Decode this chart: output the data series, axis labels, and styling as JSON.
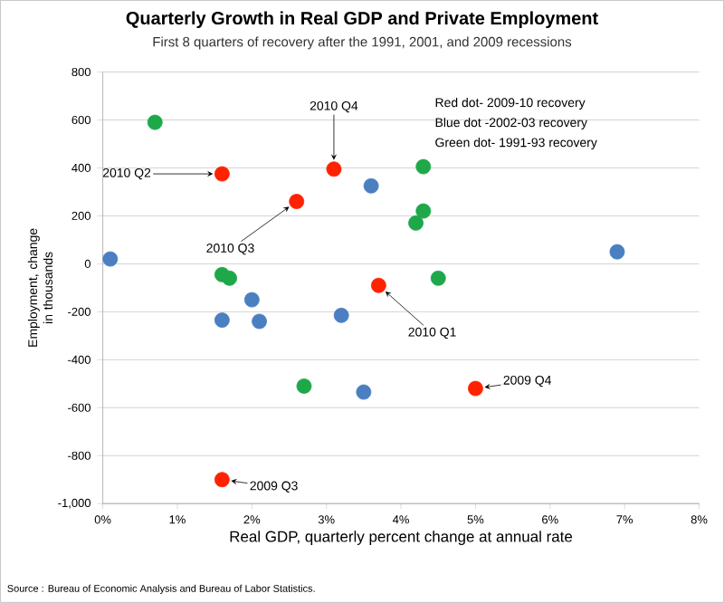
{
  "chart_data": {
    "type": "scatter",
    "title": "Quarterly Growth in Real  GDP and Private Employment",
    "subtitle": "First 8 quarters of recovery after the 1991, 2001, and 2009 recessions",
    "xlabel": "Real GDP, quarterly percent change at annual rate",
    "ylabel": "Employment, change in thousands",
    "xlim": [
      0,
      8
    ],
    "ylim": [
      -1000,
      800
    ],
    "xticks": [
      {
        "value": 0,
        "label": "0%"
      },
      {
        "value": 1,
        "label": "1%"
      },
      {
        "value": 2,
        "label": "2%"
      },
      {
        "value": 3,
        "label": "3%"
      },
      {
        "value": 4,
        "label": "4%"
      },
      {
        "value": 5,
        "label": "5%"
      },
      {
        "value": 6,
        "label": "6%"
      },
      {
        "value": 7,
        "label": "7%"
      },
      {
        "value": 8,
        "label": "8%"
      }
    ],
    "yticks": [
      {
        "value": -1000,
        "label": "-1,000"
      },
      -800,
      -600,
      -400,
      -200,
      0,
      200,
      400,
      600,
      800
    ],
    "grid": "y",
    "marker": "circle",
    "series": [
      {
        "color": "#ff2200",
        "x": [
          1.6,
          5.0,
          3.7,
          1.6,
          2.6,
          3.1
        ],
        "values": [
          -900,
          -520,
          -90,
          375,
          260,
          395
        ]
      },
      {
        "color": "#4a7fc1",
        "x": [
          0.1,
          3.6,
          6.9,
          2.0,
          1.6,
          2.1,
          3.2,
          3.5
        ],
        "values": [
          20,
          325,
          50,
          -150,
          -235,
          -240,
          -215,
          -535
        ]
      },
      {
        "color": "#1ea84a",
        "x": [
          0.7,
          4.3,
          4.3,
          4.2,
          1.6,
          1.7,
          4.5,
          2.7
        ],
        "values": [
          590,
          405,
          220,
          170,
          -45,
          -60,
          -60,
          -510
        ]
      }
    ],
    "annotations": [
      {
        "text": "2010 Q2",
        "x": 1.6,
        "y": 375
      },
      {
        "text": "2010 Q4",
        "x": 3.1,
        "y": 395
      },
      {
        "text": "2010 Q3",
        "x": 2.6,
        "y": 260
      },
      {
        "text": "2010 Q1",
        "x": 3.7,
        "y": -90
      },
      {
        "text": "2009 Q4",
        "x": 5.0,
        "y": -520
      },
      {
        "text": "2009 Q3",
        "x": 1.6,
        "y": -900
      },
      "Red dot- 2009-10 recovery",
      "Blue dot -2002-03 recovery",
      "Green dot- 1991-93 recovery",
      "Source : Bureau of Economic Analysis and Bureau of Labor Statistics."
    ]
  }
}
